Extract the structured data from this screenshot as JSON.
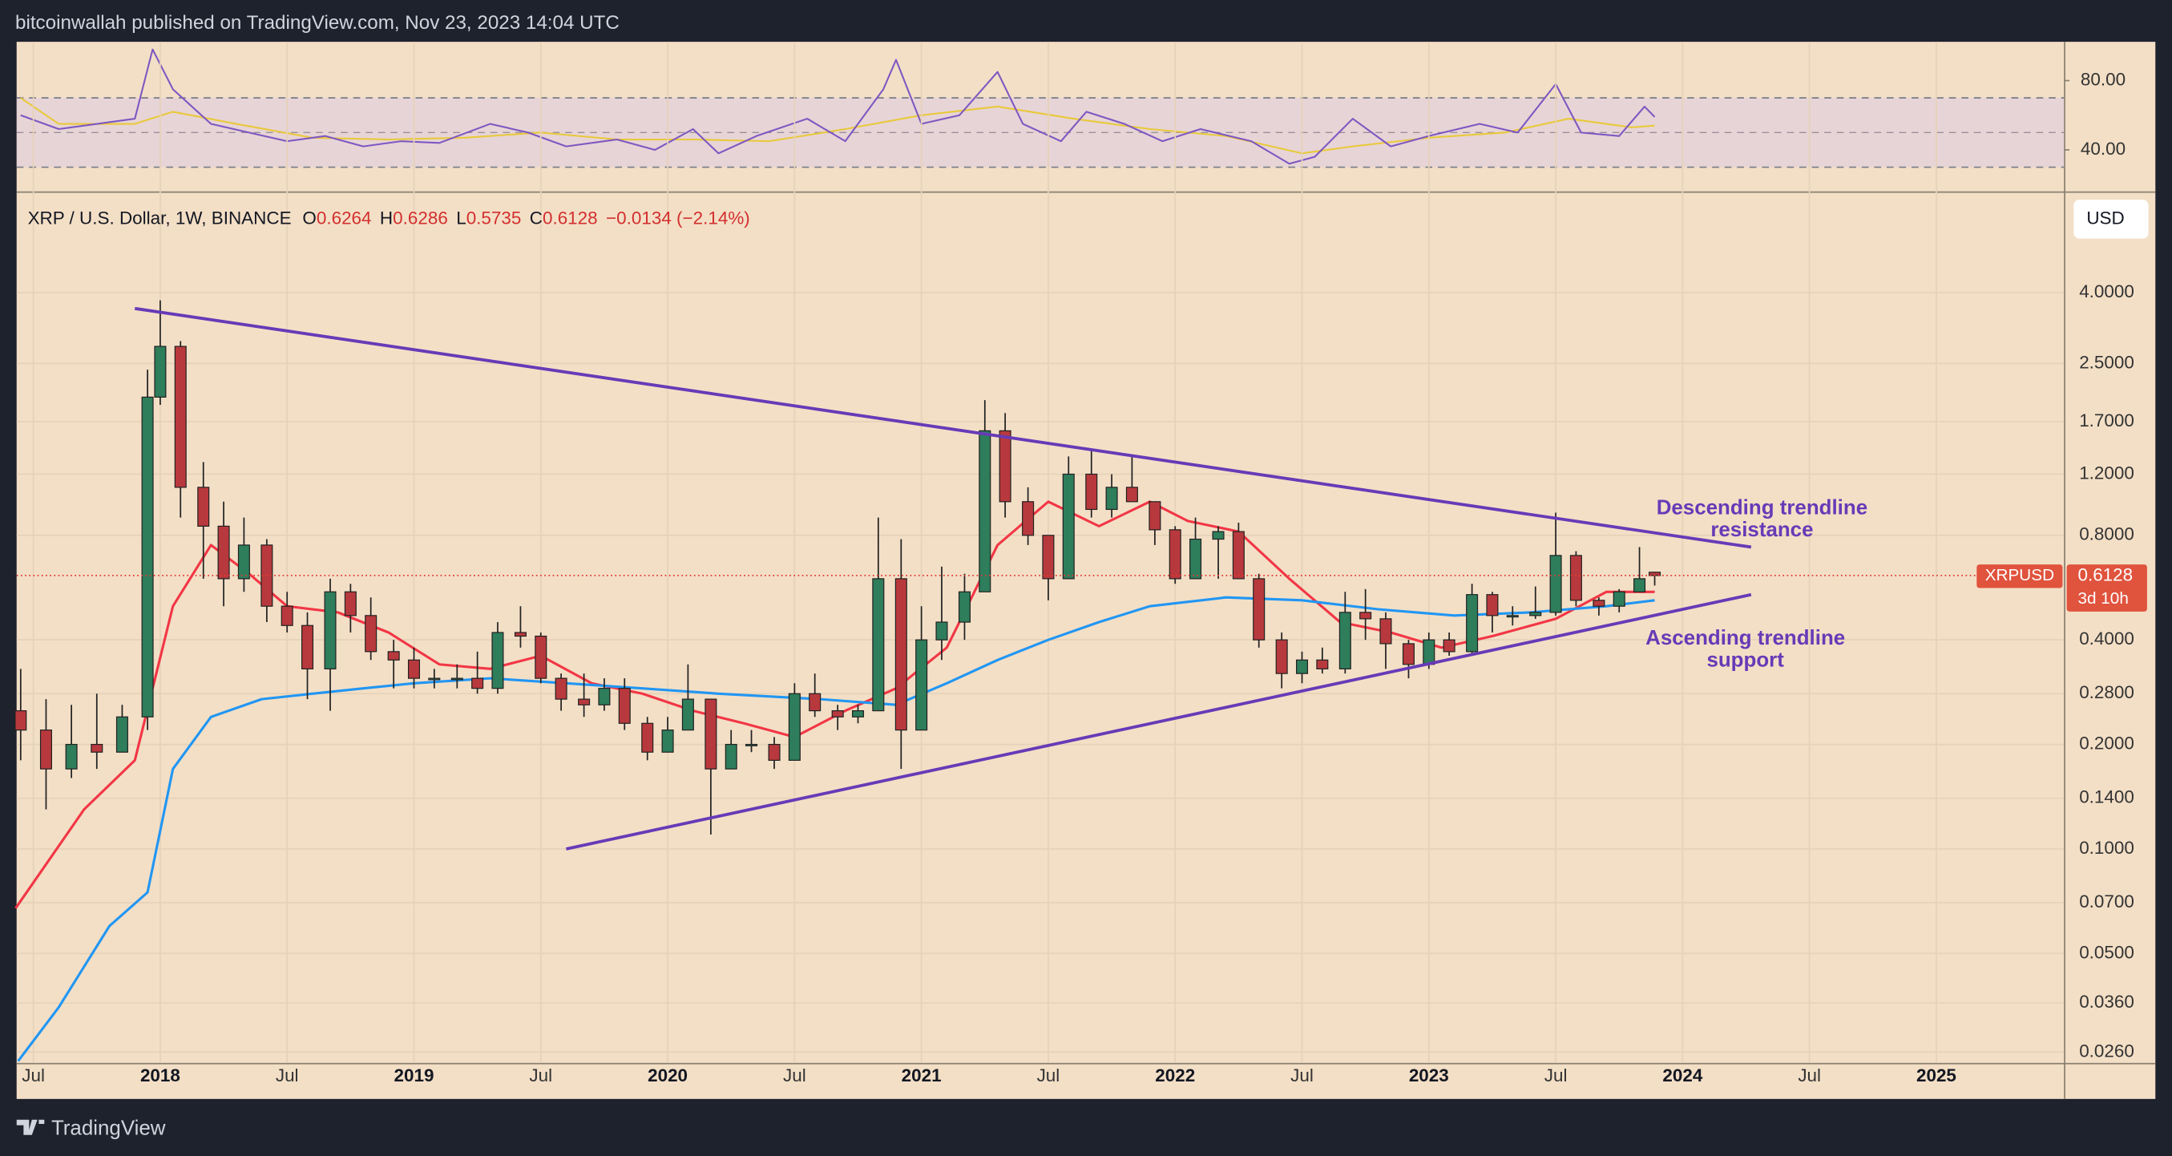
{
  "header": {
    "title": "bitcoinwallah published on TradingView.com, Nov 23, 2023 14:04 UTC"
  },
  "footer": {
    "brand": "TradingView"
  },
  "currency_button": "USD",
  "chart_data": [
    {
      "type": "line",
      "name": "RSI",
      "xlim": [
        2017.434,
        2025.503
      ],
      "ylim": [
        18.4,
        102.4
      ],
      "yticks": [
        {
          "value": 80,
          "label": "80.00"
        },
        {
          "value": 40,
          "label": "40.00"
        }
      ],
      "bands": [
        30,
        70
      ],
      "midline": 50,
      "band_color": "#d9c8e8",
      "series": [
        {
          "color": "#7e57c2",
          "x": [
            2017.45,
            2017.6,
            2017.75,
            2017.9,
            2017.97,
            2018.05,
            2018.2,
            2018.35,
            2018.5,
            2018.65,
            2018.8,
            2018.95,
            2019.1,
            2019.3,
            2019.45,
            2019.6,
            2019.8,
            2019.95,
            2020.1,
            2020.2,
            2020.35,
            2020.55,
            2020.7,
            2020.85,
            2020.9,
            2021.0,
            2021.15,
            2021.3,
            2021.4,
            2021.55,
            2021.65,
            2021.8,
            2021.95,
            2022.1,
            2022.3,
            2022.45,
            2022.55,
            2022.7,
            2022.85,
            2023.0,
            2023.2,
            2023.35,
            2023.5,
            2023.6,
            2023.75,
            2023.85,
            2023.89
          ],
          "values": [
            60,
            52,
            55,
            58,
            98,
            75,
            55,
            50,
            45,
            48,
            42,
            45,
            44,
            55,
            50,
            42,
            46,
            40,
            52,
            38,
            48,
            58,
            45,
            75,
            92,
            55,
            60,
            85,
            55,
            45,
            62,
            55,
            45,
            52,
            45,
            32,
            36,
            58,
            42,
            48,
            55,
            50,
            78,
            50,
            48,
            65,
            59
          ]
        },
        {
          "color": "#e8c93a",
          "x": [
            2017.45,
            2017.6,
            2017.9,
            2018.05,
            2018.3,
            2018.6,
            2018.9,
            2019.2,
            2019.5,
            2019.8,
            2020.1,
            2020.4,
            2020.7,
            2021.0,
            2021.3,
            2021.6,
            2021.9,
            2022.2,
            2022.5,
            2022.7,
            2023.0,
            2023.3,
            2023.55,
            2023.8,
            2023.89
          ],
          "values": [
            70,
            55,
            55,
            62,
            55,
            47,
            46,
            47,
            50,
            46,
            46,
            45,
            52,
            60,
            65,
            58,
            52,
            48,
            38,
            42,
            47,
            50,
            58,
            53,
            54
          ]
        }
      ]
    },
    {
      "type": "candlestick",
      "symbol": "XRP / U.S. Dollar, 1W, BINANCE",
      "legend": {
        "o_label": "O",
        "o": 0.6264,
        "h_label": "H",
        "h": 0.6286,
        "l_label": "L",
        "l": 0.5735,
        "c_label": "C",
        "c": 0.6128,
        "change": "−0.0134 (−2.14%)"
      },
      "ticker": "XRPUSD",
      "countdown": "3d 10h",
      "log_scale": true,
      "grid": true,
      "up_color": "#2e7d5b",
      "down_color": "#b8393d",
      "xlim": [
        2017.434,
        2025.503
      ],
      "ylim": [
        0.0242,
        7.68
      ],
      "xticks": [
        {
          "value": 2017.5,
          "label": "Jul"
        },
        2018,
        {
          "value": 2018.5,
          "label": "Jul"
        },
        2019,
        {
          "value": 2019.5,
          "label": "Jul"
        },
        2020,
        {
          "value": 2020.5,
          "label": "Jul"
        },
        2021,
        {
          "value": 2021.5,
          "label": "Jul"
        },
        2022,
        {
          "value": 2022.5,
          "label": "Jul"
        },
        2023,
        {
          "value": 2023.5,
          "label": "Jul"
        },
        2024,
        {
          "value": 2024.5,
          "label": "Jul"
        },
        2025
      ],
      "yticks": [
        {
          "value": 4,
          "label": "4.0000"
        },
        {
          "value": 2.5,
          "label": "2.5000"
        },
        {
          "value": 1.7,
          "label": "1.7000"
        },
        {
          "value": 1.2,
          "label": "1.2000"
        },
        {
          "value": 0.8,
          "label": "0.8000"
        },
        {
          "value": 0.4,
          "label": "0.4000"
        },
        {
          "value": 0.28,
          "label": "0.2800"
        },
        {
          "value": 0.2,
          "label": "0.2000"
        },
        {
          "value": 0.14,
          "label": "0.1400"
        },
        {
          "value": 0.1,
          "label": "0.1000"
        },
        {
          "value": 0.07,
          "label": "0.0700"
        },
        {
          "value": 0.05,
          "label": "0.0500"
        },
        {
          "value": 0.036,
          "label": "0.0360"
        },
        {
          "value": 0.026,
          "label": "0.0260"
        }
      ],
      "x": [
        2017.45,
        2017.55,
        2017.65,
        2017.75,
        2017.85,
        2017.95,
        2018.0,
        2018.08,
        2018.17,
        2018.25,
        2018.33,
        2018.42,
        2018.5,
        2018.58,
        2018.67,
        2018.75,
        2018.83,
        2018.92,
        2019.0,
        2019.08,
        2019.17,
        2019.25,
        2019.33,
        2019.42,
        2019.5,
        2019.58,
        2019.67,
        2019.75,
        2019.83,
        2019.92,
        2020.0,
        2020.08,
        2020.17,
        2020.25,
        2020.33,
        2020.42,
        2020.5,
        2020.58,
        2020.67,
        2020.75,
        2020.83,
        2020.92,
        2021.0,
        2021.08,
        2021.17,
        2021.25,
        2021.33,
        2021.42,
        2021.5,
        2021.58,
        2021.67,
        2021.75,
        2021.83,
        2021.92,
        2022.0,
        2022.08,
        2022.17,
        2022.25,
        2022.33,
        2022.42,
        2022.5,
        2022.58,
        2022.67,
        2022.75,
        2022.83,
        2022.92,
        2023.0,
        2023.08,
        2023.17,
        2023.25,
        2023.33,
        2023.42,
        2023.5,
        2023.58,
        2023.67,
        2023.75,
        2023.83,
        2023.89
      ],
      "open": [
        0.25,
        0.22,
        0.17,
        0.2,
        0.19,
        0.24,
        2.0,
        2.8,
        1.1,
        0.85,
        0.6,
        0.75,
        0.5,
        0.44,
        0.33,
        0.55,
        0.47,
        0.37,
        0.35,
        0.31,
        0.31,
        0.31,
        0.29,
        0.42,
        0.41,
        0.31,
        0.27,
        0.26,
        0.29,
        0.23,
        0.19,
        0.22,
        0.27,
        0.17,
        0.2,
        0.2,
        0.18,
        0.28,
        0.25,
        0.24,
        0.25,
        0.6,
        0.22,
        0.4,
        0.45,
        0.55,
        1.6,
        1.0,
        0.8,
        0.6,
        1.2,
        0.95,
        1.1,
        1.0,
        0.83,
        0.6,
        0.78,
        0.82,
        0.6,
        0.4,
        0.32,
        0.35,
        0.33,
        0.48,
        0.46,
        0.39,
        0.34,
        0.4,
        0.37,
        0.54,
        0.47,
        0.47,
        0.48,
        0.7,
        0.52,
        0.5,
        0.55,
        0.6264
      ],
      "high": [
        0.33,
        0.27,
        0.26,
        0.28,
        0.26,
        2.4,
        3.8,
        2.9,
        1.3,
        1.0,
        0.9,
        0.78,
        0.55,
        0.48,
        0.6,
        0.58,
        0.53,
        0.4,
        0.38,
        0.33,
        0.34,
        0.37,
        0.45,
        0.5,
        0.42,
        0.32,
        0.32,
        0.31,
        0.31,
        0.24,
        0.24,
        0.34,
        0.27,
        0.22,
        0.22,
        0.21,
        0.3,
        0.32,
        0.26,
        0.26,
        0.9,
        0.78,
        0.5,
        0.65,
        0.62,
        1.96,
        1.8,
        1.1,
        0.8,
        1.35,
        1.4,
        1.2,
        1.35,
        1.0,
        0.85,
        0.9,
        0.85,
        0.87,
        0.62,
        0.42,
        0.37,
        0.38,
        0.55,
        0.56,
        0.48,
        0.4,
        0.42,
        0.42,
        0.58,
        0.55,
        0.5,
        0.57,
        0.93,
        0.72,
        0.53,
        0.56,
        0.74,
        0.6286
      ],
      "low": [
        0.18,
        0.13,
        0.16,
        0.17,
        0.19,
        0.22,
        1.9,
        0.9,
        0.6,
        0.5,
        0.55,
        0.45,
        0.42,
        0.27,
        0.25,
        0.42,
        0.35,
        0.29,
        0.29,
        0.29,
        0.29,
        0.28,
        0.28,
        0.38,
        0.3,
        0.25,
        0.24,
        0.25,
        0.22,
        0.18,
        0.19,
        0.22,
        0.11,
        0.17,
        0.19,
        0.17,
        0.18,
        0.24,
        0.22,
        0.23,
        0.25,
        0.17,
        0.22,
        0.35,
        0.4,
        0.55,
        0.9,
        0.75,
        0.52,
        0.6,
        0.9,
        0.9,
        1.0,
        0.75,
        0.58,
        0.6,
        0.6,
        0.6,
        0.38,
        0.29,
        0.3,
        0.32,
        0.32,
        0.4,
        0.33,
        0.31,
        0.33,
        0.36,
        0.36,
        0.42,
        0.44,
        0.46,
        0.47,
        0.5,
        0.47,
        0.48,
        0.55,
        0.5735
      ],
      "close": [
        0.22,
        0.17,
        0.2,
        0.19,
        0.24,
        2.0,
        2.8,
        1.1,
        0.85,
        0.6,
        0.75,
        0.5,
        0.44,
        0.33,
        0.55,
        0.47,
        0.37,
        0.35,
        0.31,
        0.31,
        0.31,
        0.29,
        0.42,
        0.41,
        0.31,
        0.27,
        0.26,
        0.29,
        0.23,
        0.19,
        0.22,
        0.27,
        0.17,
        0.2,
        0.2,
        0.18,
        0.28,
        0.25,
        0.24,
        0.25,
        0.6,
        0.22,
        0.4,
        0.45,
        0.55,
        1.6,
        1.0,
        0.8,
        0.6,
        1.2,
        0.95,
        1.1,
        1.0,
        0.83,
        0.6,
        0.78,
        0.82,
        0.6,
        0.4,
        0.32,
        0.35,
        0.33,
        0.48,
        0.46,
        0.39,
        0.34,
        0.4,
        0.37,
        0.54,
        0.47,
        0.47,
        0.48,
        0.7,
        0.52,
        0.5,
        0.55,
        0.6,
        0.6128
      ],
      "series": [
        {
          "color": "#f23645",
          "x": [
            2017.43,
            2017.7,
            2017.9,
            2018.05,
            2018.2,
            2018.35,
            2018.5,
            2018.7,
            2018.9,
            2019.1,
            2019.3,
            2019.5,
            2019.7,
            2019.9,
            2020.1,
            2020.3,
            2020.5,
            2020.7,
            2020.9,
            2021.1,
            2021.3,
            2021.5,
            2021.7,
            2021.9,
            2022.05,
            2022.25,
            2022.45,
            2022.65,
            2022.85,
            2023.05,
            2023.25,
            2023.5,
            2023.7,
            2023.89
          ],
          "values": [
            0.0675,
            0.13,
            0.18,
            0.5,
            0.75,
            0.62,
            0.5,
            0.48,
            0.42,
            0.34,
            0.33,
            0.36,
            0.3,
            0.28,
            0.25,
            0.23,
            0.21,
            0.25,
            0.29,
            0.38,
            0.75,
            1.0,
            0.85,
            1.0,
            0.88,
            0.82,
            0.6,
            0.45,
            0.42,
            0.38,
            0.41,
            0.46,
            0.55,
            0.55
          ]
        },
        {
          "color": "#2196f3",
          "x": [
            2017.44,
            2017.6,
            2017.8,
            2017.95,
            2018.05,
            2018.2,
            2018.4,
            2018.6,
            2018.8,
            2019.0,
            2019.3,
            2019.6,
            2019.9,
            2020.2,
            2020.6,
            2020.9,
            2021.1,
            2021.3,
            2021.5,
            2021.7,
            2021.9,
            2022.2,
            2022.5,
            2022.8,
            2023.1,
            2023.4,
            2023.7,
            2023.89
          ],
          "values": [
            0.0245,
            0.035,
            0.06,
            0.075,
            0.17,
            0.24,
            0.27,
            0.28,
            0.29,
            0.3,
            0.31,
            0.3,
            0.29,
            0.28,
            0.27,
            0.26,
            0.3,
            0.35,
            0.4,
            0.45,
            0.5,
            0.53,
            0.52,
            0.49,
            0.47,
            0.48,
            0.5,
            0.52
          ]
        }
      ],
      "trendlines": [
        {
          "color": "#673ab7",
          "x": [
            2017.9,
            2024.27
          ],
          "values": [
            3.6,
            0.74
          ]
        },
        {
          "color": "#673ab7",
          "x": [
            2019.6,
            2024.27
          ],
          "values": [
            0.1,
            0.54
          ]
        }
      ],
      "annotations": [
        {
          "lines": [
            "Descending trendline",
            "resistance"
          ],
          "color": "#673ab7"
        },
        {
          "lines": [
            "Ascending trendline",
            "support"
          ],
          "color": "#673ab7"
        }
      ]
    }
  ]
}
